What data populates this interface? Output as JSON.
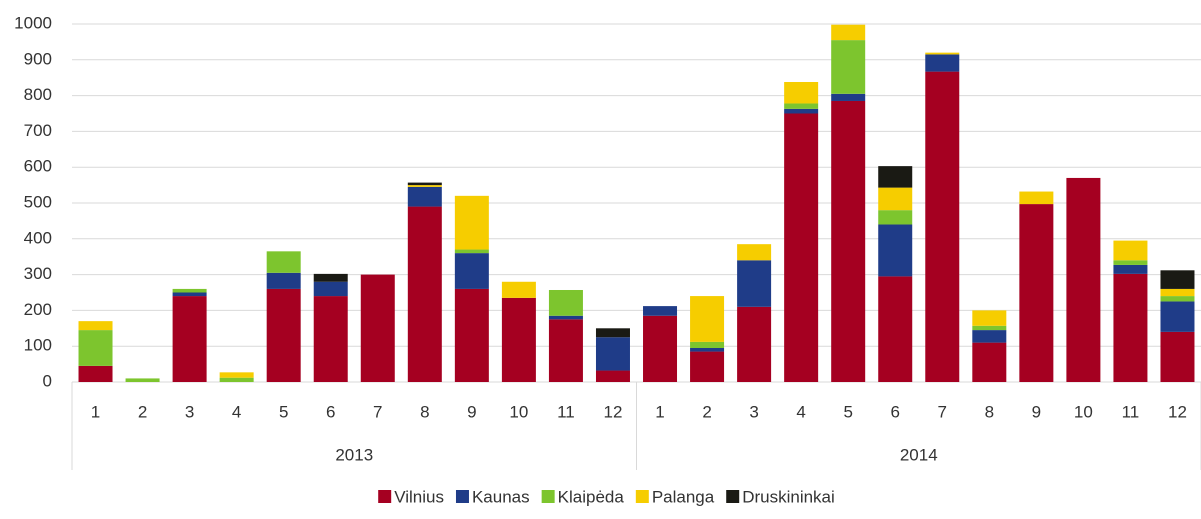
{
  "chart_data": {
    "type": "stacked_bar",
    "categories": [
      "1",
      "2",
      "3",
      "4",
      "5",
      "6",
      "7",
      "8",
      "9",
      "10",
      "11",
      "12",
      "1",
      "2",
      "3",
      "4",
      "5",
      "6",
      "7",
      "8",
      "9",
      "10",
      "11",
      "12"
    ],
    "groups": [
      {
        "label": "2013",
        "size": 12
      },
      {
        "label": "2014",
        "size": 12
      }
    ],
    "series": [
      {
        "name": "Vilnius",
        "color": "#a50021",
        "values": [
          45,
          0,
          240,
          0,
          260,
          240,
          300,
          490,
          260,
          235,
          175,
          32,
          185,
          85,
          210,
          750,
          785,
          295,
          867,
          110,
          497,
          570,
          302,
          140
        ]
      },
      {
        "name": "Kaunas",
        "color": "#1f3c88",
        "values": [
          0,
          0,
          10,
          0,
          45,
          40,
          0,
          55,
          100,
          0,
          10,
          93,
          27,
          10,
          130,
          13,
          20,
          145,
          48,
          35,
          0,
          0,
          25,
          85
        ]
      },
      {
        "name": "Klaipėda",
        "color": "#7dc52e",
        "values": [
          100,
          10,
          10,
          12,
          60,
          0,
          0,
          0,
          10,
          0,
          72,
          0,
          0,
          17,
          0,
          15,
          150,
          40,
          0,
          12,
          0,
          0,
          13,
          15
        ]
      },
      {
        "name": "Palanga",
        "color": "#f6cd00",
        "values": [
          25,
          0,
          0,
          15,
          0,
          0,
          0,
          5,
          150,
          45,
          0,
          0,
          0,
          128,
          45,
          60,
          43,
          63,
          5,
          43,
          35,
          0,
          55,
          20
        ]
      },
      {
        "name": "Druskininkai",
        "color": "#1a1a14",
        "values": [
          0,
          0,
          0,
          0,
          0,
          22,
          0,
          7,
          0,
          0,
          0,
          25,
          0,
          0,
          0,
          0,
          0,
          60,
          0,
          0,
          0,
          0,
          0,
          52
        ]
      }
    ],
    "ylim": [
      0,
      1000
    ],
    "yticks": [
      0,
      100,
      200,
      300,
      400,
      500,
      600,
      700,
      800,
      900,
      1000
    ],
    "grid": true,
    "legend": "bottom"
  }
}
